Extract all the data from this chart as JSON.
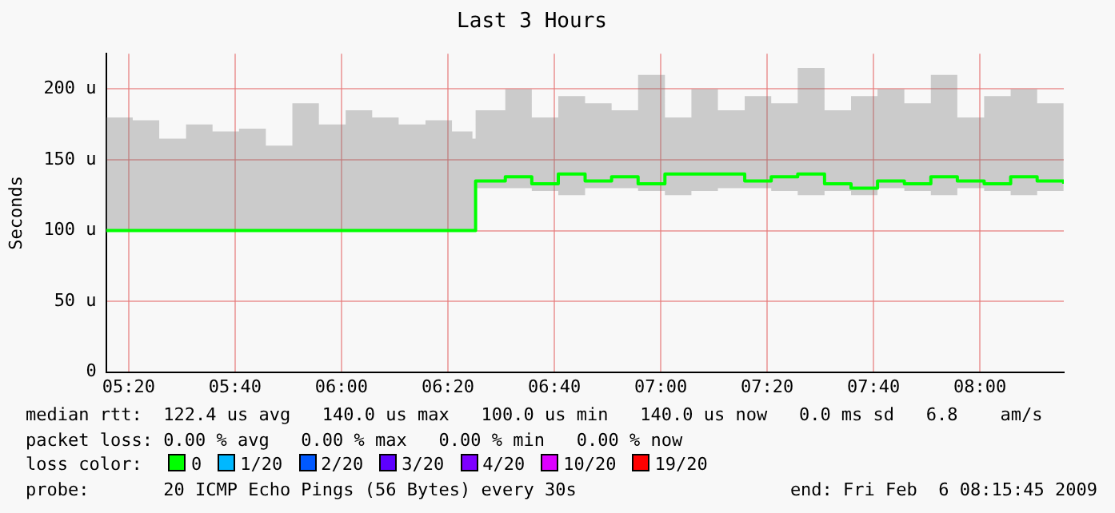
{
  "chart_data": {
    "type": "step",
    "title": "Last 3 Hours",
    "ylabel": "Seconds",
    "legend_title": "loss color:",
    "x": [
      5.263,
      5.346,
      5.429,
      5.513,
      5.596,
      5.679,
      5.763,
      5.846,
      5.929,
      6.013,
      6.096,
      6.179,
      6.263,
      6.346,
      6.41,
      6.42,
      6.513,
      6.596,
      6.679,
      6.763,
      6.846,
      6.929,
      7.013,
      7.096,
      7.179,
      7.263,
      7.346,
      7.429,
      7.513,
      7.596,
      7.679,
      7.763,
      7.846,
      7.929,
      8.013,
      8.096,
      8.179,
      8.262
    ],
    "series": [
      {
        "name": "0",
        "color": "#00ff00",
        "values": [
          100,
          100,
          100,
          100,
          100,
          100,
          100,
          100,
          100,
          100,
          100,
          100,
          100,
          100,
          100,
          135,
          138,
          133,
          140,
          135,
          138,
          133,
          140,
          140,
          140,
          135,
          138,
          140,
          133,
          130,
          135,
          133,
          138,
          135,
          133,
          138,
          135,
          133
        ],
        "lower": [
          100,
          100,
          100,
          100,
          100,
          100,
          100,
          100,
          100,
          100,
          100,
          100,
          100,
          100,
          100,
          130,
          130,
          128,
          125,
          130,
          130,
          128,
          125,
          128,
          130,
          130,
          128,
          125,
          128,
          125,
          130,
          128,
          125,
          130,
          128,
          125,
          128,
          125
        ],
        "upper": [
          180,
          178,
          165,
          175,
          170,
          172,
          160,
          190,
          175,
          185,
          180,
          175,
          178,
          170,
          165,
          185,
          200,
          180,
          195,
          190,
          185,
          210,
          180,
          200,
          185,
          195,
          190,
          215,
          185,
          195,
          200,
          190,
          210,
          180,
          195,
          200,
          190,
          180
        ]
      },
      {
        "name": "1/20",
        "color": "#00b8ff",
        "values": [
          null,
          null,
          null,
          null,
          null,
          null,
          null,
          null,
          null,
          null,
          null,
          null,
          null,
          null,
          null,
          null,
          null,
          null,
          null,
          null,
          null,
          null,
          null,
          null,
          null,
          null,
          null,
          null,
          null,
          null,
          null,
          null,
          null,
          null,
          null,
          null,
          null,
          null
        ]
      },
      {
        "name": "2/20",
        "color": "#0059ff",
        "values": [
          null,
          null,
          null,
          null,
          null,
          null,
          null,
          null,
          null,
          null,
          null,
          null,
          null,
          null,
          null,
          null,
          null,
          null,
          null,
          null,
          null,
          null,
          null,
          null,
          null,
          null,
          null,
          null,
          null,
          null,
          null,
          null,
          null,
          null,
          null,
          null,
          null,
          null
        ]
      },
      {
        "name": "3/20",
        "color": "#5e00ff",
        "values": [
          null,
          null,
          null,
          null,
          null,
          null,
          null,
          null,
          null,
          null,
          null,
          null,
          null,
          null,
          null,
          null,
          null,
          null,
          null,
          null,
          null,
          null,
          null,
          null,
          null,
          null,
          null,
          null,
          null,
          null,
          null,
          null,
          null,
          null,
          null,
          null,
          null,
          null
        ]
      },
      {
        "name": "4/20",
        "color": "#7e00ff",
        "values": [
          null,
          null,
          null,
          null,
          null,
          null,
          null,
          null,
          null,
          null,
          null,
          null,
          null,
          null,
          null,
          null,
          null,
          null,
          null,
          null,
          null,
          null,
          null,
          null,
          null,
          null,
          null,
          null,
          null,
          null,
          null,
          null,
          null,
          null,
          null,
          null,
          null,
          null
        ]
      },
      {
        "name": "10/20",
        "color": "#dd00ff",
        "values": [
          null,
          null,
          null,
          null,
          null,
          null,
          null,
          null,
          null,
          null,
          null,
          null,
          null,
          null,
          null,
          null,
          null,
          null,
          null,
          null,
          null,
          null,
          null,
          null,
          null,
          null,
          null,
          null,
          null,
          null,
          null,
          null,
          null,
          null,
          null,
          null,
          null,
          null
        ]
      },
      {
        "name": "19/20",
        "color": "#ff0000",
        "values": [
          null,
          null,
          null,
          null,
          null,
          null,
          null,
          null,
          null,
          null,
          null,
          null,
          null,
          null,
          null,
          null,
          null,
          null,
          null,
          null,
          null,
          null,
          null,
          null,
          null,
          null,
          null,
          null,
          null,
          null,
          null,
          null,
          null,
          null,
          null,
          null,
          null,
          null
        ]
      }
    ],
    "xlim": [
      5.2625,
      8.2625
    ],
    "xticks": [
      {
        "value": 5.3333,
        "label": "05:20"
      },
      {
        "value": 5.6667,
        "label": "05:40"
      },
      {
        "value": 6,
        "label": "06:00"
      },
      {
        "value": 6.3333,
        "label": "06:20"
      },
      {
        "value": 6.6667,
        "label": "06:40"
      },
      {
        "value": 7,
        "label": "07:00"
      },
      {
        "value": 7.3333,
        "label": "07:20"
      },
      {
        "value": 7.6667,
        "label": "07:40"
      },
      {
        "value": 8,
        "label": "08:00"
      }
    ],
    "ylim": [
      0,
      225
    ],
    "yticks": [
      0,
      {
        "value": 50,
        "label": "50 u"
      },
      {
        "value": 100,
        "label": "100 u"
      },
      {
        "value": 150,
        "label": "150 u"
      },
      {
        "value": 200,
        "label": "200 u"
      }
    ],
    "grid": true,
    "legend": "bottom",
    "line_style": "solid",
    "marker": "none",
    "annotations": [
      "median rtt:  122.4 us avg   140.0 us max   100.0 us min   140.0 us now   0.0 ms sd   6.8    am/s",
      "packet loss: 0.00 % avg   0.00 % max   0.00 % min   0.00 % now",
      "probe:       20 ICMP Echo Pings (56 Bytes) every 30s",
      "end: Fri Feb  6 08:15:45 2009"
    ]
  }
}
